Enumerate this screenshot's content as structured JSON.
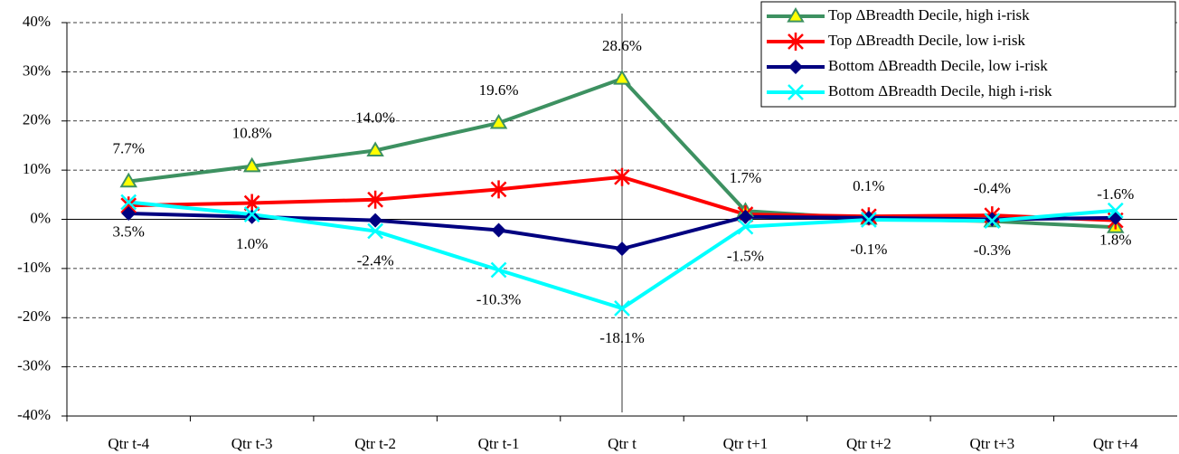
{
  "chart_data": {
    "type": "line",
    "categories": [
      "Qtr t-4",
      "Qtr t-3",
      "Qtr t-2",
      "Qtr t-1",
      "Qtr t",
      "Qtr t+1",
      "Qtr t+2",
      "Qtr t+3",
      "Qtr t+4"
    ],
    "series": [
      {
        "name": "Top ΔBreadth Decile, high i-risk",
        "color": "#3d9161",
        "marker": "triangle",
        "values": [
          7.7,
          10.8,
          14.0,
          19.6,
          28.6,
          1.7,
          0.1,
          -0.4,
          -1.6
        ],
        "value_labels": [
          "7.7%",
          "10.8%",
          "14.0%",
          "19.6%",
          "28.6%",
          "1.7%",
          "0.1%",
          "-0.4%",
          "-1.6%"
        ],
        "label_side": "above"
      },
      {
        "name": "Top ΔBreadth Decile, low i-risk",
        "color": "#ff0000",
        "marker": "star",
        "values": [
          2.8,
          3.3,
          4.0,
          6.1,
          8.6,
          1.0,
          0.6,
          0.8,
          -0.2
        ]
      },
      {
        "name": "Bottom ΔBreadth Decile, low i-risk",
        "color": "#000080",
        "marker": "diamond",
        "values": [
          1.2,
          0.5,
          -0.2,
          -2.2,
          -6.0,
          0.5,
          0.3,
          0.0,
          0.3
        ]
      },
      {
        "name": "Bottom ΔBreadth Decile, high i-risk",
        "color": "#00ffff",
        "marker": "x",
        "values": [
          3.5,
          1.0,
          -2.4,
          -10.3,
          -18.1,
          -1.5,
          -0.1,
          -0.3,
          1.8
        ],
        "value_labels": [
          "3.5%",
          "1.0%",
          "-2.4%",
          "-10.3%",
          "-18.1%",
          "-1.5%",
          "-0.1%",
          "-0.3%",
          "1.8%"
        ],
        "label_side": "below"
      }
    ],
    "ylim": [
      -40,
      40
    ],
    "yticks": [
      {
        "value": -40,
        "label": "-40%"
      },
      {
        "value": -30,
        "label": "-30%"
      },
      {
        "value": -20,
        "label": "-20%"
      },
      {
        "value": -10,
        "label": "-10%"
      },
      {
        "value": 0,
        "label": "0%"
      },
      {
        "value": 10,
        "label": "10%"
      },
      {
        "value": 20,
        "label": "20%"
      },
      {
        "value": 30,
        "label": "30%"
      },
      {
        "value": 40,
        "label": "40%"
      }
    ],
    "grid": true,
    "legend": "top-right"
  }
}
